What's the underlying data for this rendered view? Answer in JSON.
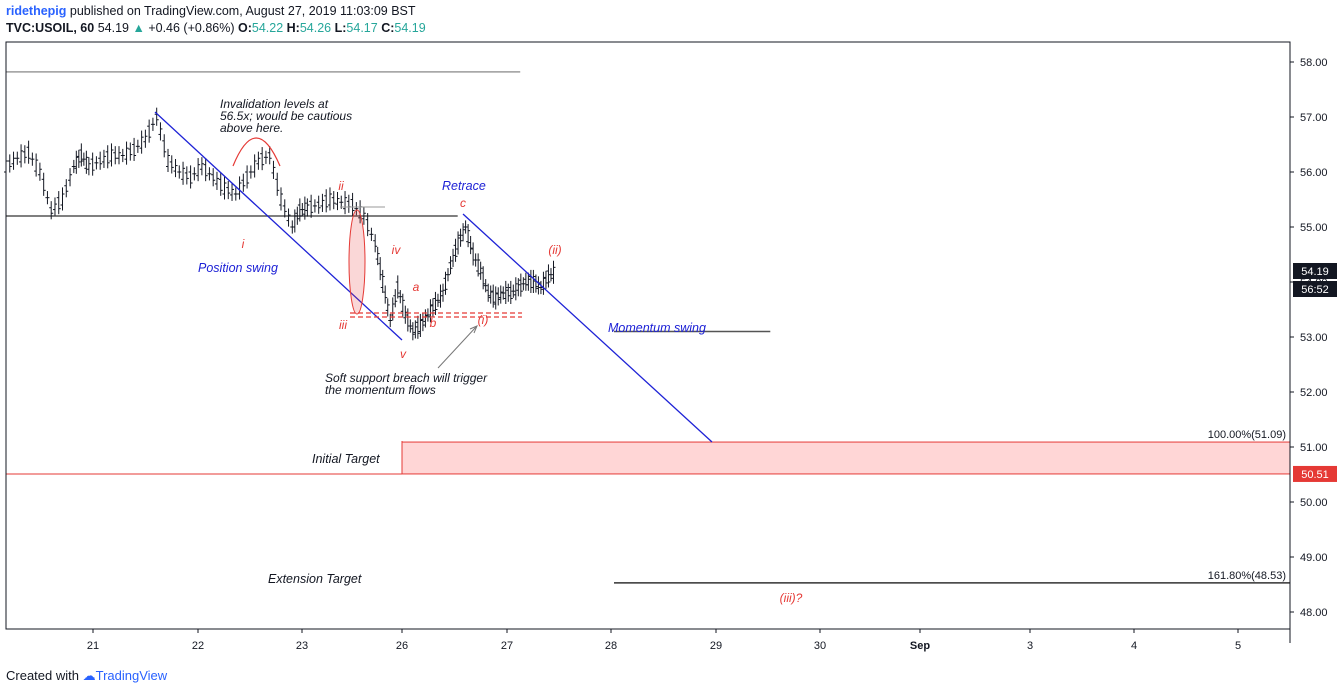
{
  "header": {
    "user": "ridethepig",
    "published_text": " published on TradingView.com, August 27, 2019 11:03:09 BST",
    "symbol": "TVC:USOIL, 60",
    "last": "54.19",
    "change": "+0.46 (+0.86%)",
    "o_label": "O:",
    "o_value": "54.22",
    "h_label": "H:",
    "h_value": "54.26",
    "l_label": "L:",
    "l_value": "54.17",
    "c_label": "C:",
    "c_value": "54.19"
  },
  "footer": {
    "created_with": "Created with",
    "brand": "TradingView"
  },
  "chart_data": {
    "type": "candlestick",
    "symbol": "TVC:USOIL",
    "interval": "60",
    "x_tick_labels": [
      "21",
      "22",
      "23",
      "26",
      "27",
      "28",
      "29",
      "30",
      "Sep",
      "3",
      "4",
      "5"
    ],
    "y_tick_labels": [
      "58.00",
      "57.00",
      "56.00",
      "55.00",
      "54.00",
      "53.00",
      "52.00",
      "51.00",
      "50.00",
      "49.00",
      "48.00"
    ],
    "ylim": [
      47.8,
      58.2
    ],
    "price_series": [
      [
        21.0,
        56.1
      ],
      [
        21.15,
        56.25
      ],
      [
        21.3,
        56.35
      ],
      [
        21.45,
        56.0
      ],
      [
        21.6,
        55.3
      ],
      [
        21.75,
        55.5
      ],
      [
        21.9,
        56.1
      ],
      [
        22.0,
        56.3
      ],
      [
        22.1,
        56.1
      ],
      [
        22.25,
        56.2
      ],
      [
        22.4,
        56.3
      ],
      [
        22.55,
        56.3
      ],
      [
        22.7,
        56.4
      ],
      [
        22.85,
        56.6
      ],
      [
        23.0,
        57.0
      ],
      [
        23.15,
        56.2
      ],
      [
        23.3,
        56.0
      ],
      [
        23.45,
        55.9
      ],
      [
        23.6,
        56.1
      ],
      [
        23.75,
        55.9
      ],
      [
        23.9,
        55.7
      ],
      [
        24.05,
        55.6
      ],
      [
        24.2,
        55.9
      ],
      [
        24.35,
        56.2
      ],
      [
        24.5,
        56.3
      ],
      [
        24.65,
        55.5
      ],
      [
        24.8,
        55.0
      ],
      [
        24.9,
        55.3
      ],
      [
        25.0,
        55.35
      ],
      [
        25.15,
        55.4
      ],
      [
        25.3,
        55.5
      ],
      [
        25.45,
        55.45
      ],
      [
        25.6,
        55.4
      ],
      [
        25.75,
        55.2
      ],
      [
        25.9,
        54.7
      ],
      [
        26.0,
        54.0
      ],
      [
        26.1,
        53.3
      ],
      [
        26.2,
        53.9
      ],
      [
        26.3,
        53.4
      ],
      [
        26.4,
        53.1
      ],
      [
        26.5,
        53.2
      ],
      [
        26.6,
        53.4
      ],
      [
        26.7,
        53.6
      ],
      [
        26.8,
        53.8
      ],
      [
        26.9,
        54.3
      ],
      [
        27.0,
        54.7
      ],
      [
        27.1,
        55.0
      ],
      [
        27.2,
        54.5
      ],
      [
        27.3,
        54.2
      ],
      [
        27.4,
        53.8
      ],
      [
        27.5,
        53.7
      ],
      [
        27.6,
        53.8
      ],
      [
        27.7,
        53.8
      ],
      [
        27.8,
        53.9
      ],
      [
        27.9,
        54.0
      ],
      [
        28.0,
        54.0
      ],
      [
        28.1,
        53.9
      ],
      [
        28.2,
        54.1
      ],
      [
        28.3,
        54.2
      ]
    ],
    "horizontal_levels": [
      {
        "price": 57.82,
        "color": "#9b9b9b",
        "from_x": 20.2,
        "to_x": 25.1
      },
      {
        "price": 55.2,
        "color": "#555555",
        "from_x": 20.2,
        "to_x": 24.5
      },
      {
        "price": 53.1,
        "color": "#555555",
        "from_x": 26.0,
        "to_x": 27.5
      },
      {
        "price": 48.53,
        "color": "#333333",
        "from_x": 26.0,
        "to_x": 34.0
      }
    ],
    "target_zone": {
      "from_price": 51.09,
      "to_price": 50.51,
      "from_x": 26.0
    },
    "price_labels": {
      "current": "54.19",
      "countdown": "56:52",
      "red_level": "50.51"
    },
    "fib_labels": {
      "fib_100": "100.00%(51.09)",
      "fib_161": "161.80%(48.53)"
    },
    "annotations": {
      "invalidation": [
        "Invalidation levels at",
        "56.5x; would be cautious",
        "above here."
      ],
      "position_swing": "Position swing",
      "retrace": "Retrace",
      "momentum_swing": "Momentum swing",
      "soft_support": [
        "Soft support breach will trigger",
        "the momentum flows"
      ],
      "initial_target": "Initial Target",
      "extension_target": "Extension Target",
      "wave_i": "i",
      "wave_ii": "ii",
      "wave_iii": "iii",
      "wave_iv": "iv",
      "wave_v": "v",
      "wave_a": "a",
      "wave_b": "b",
      "wave_c": "c",
      "wave_paren_i": "(i)",
      "wave_paren_ii": "(ii)",
      "wave_paren_iii": "(iii)?"
    },
    "colors": {
      "blue": "#1e22d6",
      "red": "#e53935",
      "zone_fill": "#ffd6d6",
      "axis": "#131722"
    }
  }
}
